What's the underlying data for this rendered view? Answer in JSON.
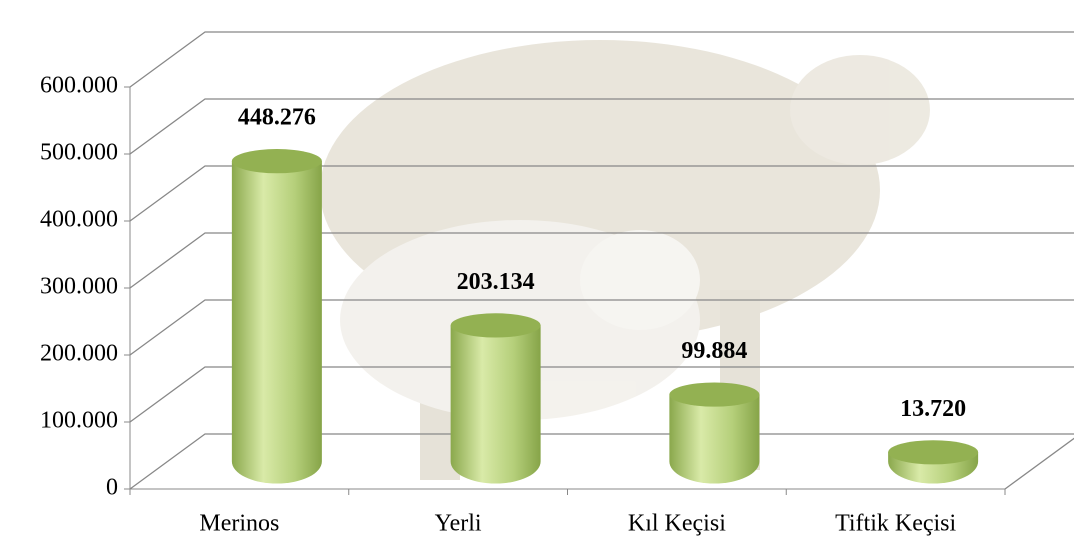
{
  "chart_data": {
    "type": "bar3d",
    "categories": [
      "Merinos",
      "Yerli",
      "Kıl Keçisi",
      "Tiftik Keçisi"
    ],
    "values": [
      448276,
      203134,
      99884,
      13720
    ],
    "value_labels": [
      "448.276",
      "203.134",
      "99.884",
      "13.720"
    ],
    "color": "#9bbb59",
    "ylim": [
      0,
      600000
    ],
    "yticks": [
      0,
      {
        "value": 100000,
        "label": "100.000"
      },
      {
        "value": 200000,
        "label": "200.000"
      },
      {
        "value": 300000,
        "label": "300.000"
      },
      {
        "value": 400000,
        "label": "400.000"
      },
      {
        "value": 500000,
        "label": "500.000"
      },
      {
        "value": 600000,
        "label": "600.000"
      }
    ],
    "grid": true
  }
}
